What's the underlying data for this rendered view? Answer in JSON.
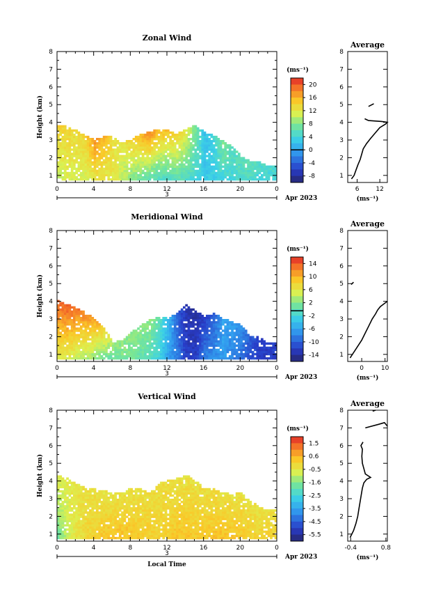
{
  "chart_data": [
    {
      "type": "heatmap",
      "title": "Zonal Wind",
      "ylabel": "Height (km)",
      "xlabel": "",
      "xlim": [
        0,
        24
      ],
      "ylim": [
        0.6,
        8
      ],
      "xticks": [
        "0",
        "4",
        "8",
        "12",
        "16",
        "20",
        "0"
      ],
      "yticks": [
        "1",
        "2",
        "3",
        "4",
        "5",
        "6",
        "7",
        "8"
      ],
      "day_label": "3",
      "month_label": "Apr 2023",
      "colorbar": {
        "unit": "(ms⁻¹)",
        "ticks": [
          "20",
          "16",
          "12",
          "8",
          "4",
          "0",
          "-4",
          "-8"
        ],
        "range": [
          -10,
          22
        ],
        "marked_value": 0
      },
      "field": {
        "top_height_km": [
          3.8,
          3.7,
          3.5,
          3.2,
          3.0,
          3.2,
          3.1,
          2.8,
          3.0,
          3.3,
          3.4,
          3.6,
          3.5,
          3.3,
          3.6,
          3.8,
          3.4,
          3.2,
          2.9,
          2.6,
          2.1,
          1.8,
          1.7,
          1.5
        ],
        "value_low_ms": [
          10,
          11,
          11,
          11,
          12,
          12,
          12,
          10,
          8,
          7,
          6,
          5,
          5,
          6,
          5,
          4,
          3,
          3,
          4,
          4,
          5,
          5,
          4,
          4
        ],
        "value_high_ms": [
          14,
          14,
          13,
          14,
          18,
          16,
          13,
          12,
          14,
          16,
          18,
          16,
          15,
          14,
          12,
          8,
          2,
          4,
          8,
          6,
          6,
          6,
          5,
          5
        ]
      },
      "average_profile": {
        "title": "Average",
        "xlabel": "(ms⁻¹)",
        "xticks": [
          "6",
          "12"
        ],
        "xlim": [
          3.5,
          14
        ],
        "height_km": [
          0.8,
          1.0,
          1.3,
          1.6,
          1.9,
          2.2,
          2.5,
          2.8,
          3.1,
          3.4,
          3.7,
          3.9,
          4.0,
          4.05,
          4.1,
          4.2
        ],
        "wind_ms": [
          4.5,
          5.2,
          5.7,
          6.2,
          6.8,
          7.2,
          7.6,
          8.5,
          9.6,
          10.8,
          12.0,
          13.5,
          14,
          12.5,
          9,
          8
        ],
        "segments": [
          {
            "height_km": [
              4.9,
              5.05
            ],
            "wind_ms": [
              9.0,
              10.4
            ]
          }
        ]
      }
    },
    {
      "type": "heatmap",
      "title": "Meridional Wind",
      "ylabel": "Height (km)",
      "xlabel": "",
      "xlim": [
        0,
        24
      ],
      "ylim": [
        0.6,
        8
      ],
      "xticks": [
        "0",
        "4",
        "8",
        "12",
        "16",
        "20",
        "0"
      ],
      "yticks": [
        "1",
        "2",
        "3",
        "4",
        "5",
        "6",
        "7",
        "8"
      ],
      "day_label": "3",
      "month_label": "Apr 2023",
      "colorbar": {
        "unit": "(ms⁻¹)",
        "ticks": [
          "14",
          "10",
          "6",
          "2",
          "-2",
          "-6",
          "-10",
          "-14"
        ],
        "range": [
          -16,
          17
        ],
        "marked_value": 0
      },
      "field": {
        "top_height_km": [
          4.0,
          3.8,
          3.6,
          3.3,
          3.0,
          2.5,
          1.6,
          1.8,
          2.2,
          2.6,
          2.9,
          3.1,
          3.0,
          3.3,
          3.8,
          3.4,
          3.1,
          3.3,
          3.0,
          2.8,
          2.6,
          2.0,
          1.9,
          1.6
        ],
        "value_low_ms": [
          6,
          6,
          5,
          4,
          3,
          2,
          1,
          2,
          2,
          1,
          0,
          -2,
          -6,
          -8,
          -12,
          -12,
          -8,
          -7,
          -6,
          -8,
          -9,
          -11,
          -12,
          -12
        ],
        "value_high_ms": [
          15,
          15,
          14,
          13,
          12,
          9,
          4,
          3,
          3,
          3,
          3,
          1,
          -4,
          -10,
          -13,
          -14,
          -12,
          -10,
          -6,
          -6,
          -7,
          -10,
          -12,
          -12
        ]
      },
      "average_profile": {
        "title": "Average",
        "xlabel": "(ms⁻¹)",
        "xticks": [
          "0",
          "10"
        ],
        "xlim": [
          -6,
          11
        ],
        "height_km": [
          0.8,
          1.1,
          1.4,
          1.8,
          2.2,
          2.6,
          3.0,
          3.3,
          3.5,
          3.6,
          3.7,
          3.85,
          4.0
        ],
        "wind_ms": [
          -5,
          -3.5,
          -2,
          0,
          1.5,
          3,
          4.5,
          6,
          6.8,
          7.4,
          8,
          9.5,
          11
        ],
        "segments": [
          {
            "height_km": [
              4.95,
              5.08
            ],
            "wind_ms": [
              -4.5,
              -3.5
            ]
          }
        ]
      }
    },
    {
      "type": "heatmap",
      "title": "Vertical Wind",
      "ylabel": "Height (km)",
      "xlabel": "Local Time",
      "xlim": [
        0,
        24
      ],
      "ylim": [
        0.6,
        8
      ],
      "xticks": [
        "0",
        "4",
        "8",
        "12",
        "16",
        "20",
        "0"
      ],
      "yticks": [
        "1",
        "2",
        "3",
        "4",
        "5",
        "6",
        "7",
        "8"
      ],
      "day_label": "3",
      "month_label": "Apr 2023",
      "colorbar": {
        "unit": "(ms⁻¹)",
        "ticks": [
          "1.5",
          "0.6",
          "-0.5",
          "-1.6",
          "-2.5",
          "-3.5",
          "-4.5",
          "-5.5"
        ],
        "range": [
          -6,
          2.2
        ]
      },
      "field": {
        "top_height_km": [
          4.3,
          4.1,
          3.8,
          3.6,
          3.5,
          3.4,
          3.3,
          3.3,
          3.6,
          3.5,
          3.3,
          3.8,
          4.0,
          4.1,
          4.3,
          4.0,
          3.6,
          3.5,
          3.3,
          3.2,
          3.3,
          2.8,
          2.5,
          2.3
        ],
        "value_low_ms": [
          -1.6,
          -0.8,
          -0.3,
          0,
          0.2,
          0.4,
          0.5,
          0.5,
          0.4,
          0.3,
          0.2,
          0.1,
          0.2,
          0.4,
          0.4,
          0.3,
          0.3,
          0.4,
          0.5,
          0.4,
          0.3,
          0.2,
          0.1,
          0.2
        ],
        "value_high_ms": [
          -0.4,
          -0.4,
          -0.3,
          -0.2,
          -0.2,
          -0.3,
          -0.3,
          -0.3,
          -0.2,
          -0.2,
          -0.1,
          -0.1,
          -0.1,
          -0.2,
          -0.2,
          -0.2,
          -0.1,
          -0.1,
          -0.2,
          -0.2,
          -0.2,
          -0.2,
          -0.2,
          -0.2
        ]
      },
      "average_profile": {
        "title": "Average",
        "xlabel": "(ms⁻¹)",
        "xticks": [
          "-0.4",
          "0.8"
        ],
        "xlim": [
          -0.5,
          0.85
        ],
        "height_km": [
          0.8,
          1.2,
          1.6,
          2.0,
          2.4,
          2.8,
          3.2,
          3.6,
          3.9,
          4.1,
          4.2,
          4.4,
          4.7,
          5.0,
          5.4,
          5.8,
          6.0,
          6.2
        ],
        "wind_ms": [
          -0.42,
          -0.3,
          -0.22,
          -0.16,
          -0.12,
          -0.08,
          -0.04,
          0.0,
          0.05,
          0.15,
          0.28,
          0.1,
          0.05,
          0.0,
          -0.02,
          0.0,
          -0.05,
          0.02
        ],
        "segments": [
          {
            "height_km": [
              7.0,
              7.2,
              7.3,
              7.1
            ],
            "wind_ms": [
              0.1,
              0.55,
              0.75,
              0.85
            ]
          },
          {
            "height_km": [
              7.95,
              8.0
            ],
            "wind_ms": [
              0.35,
              0.45
            ]
          }
        ]
      }
    }
  ]
}
